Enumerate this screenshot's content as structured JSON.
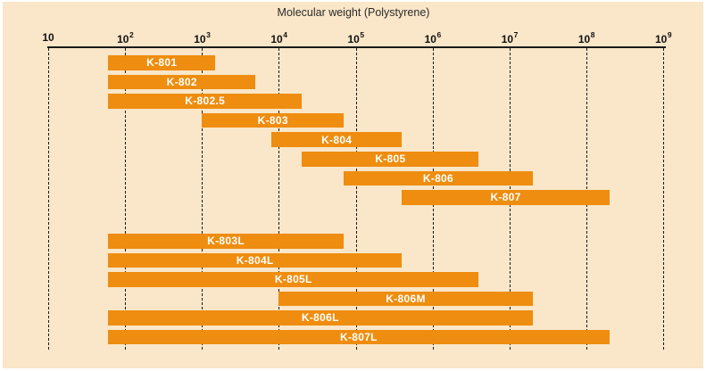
{
  "chart_data": {
    "type": "bar",
    "subtype": "horizontal-range",
    "title": "Molecular weight (Polystyrene)",
    "x_scale": "log10",
    "xlim": [
      10,
      1000000000
    ],
    "grid": "dashed-vertical",
    "legend": "none",
    "x_ticks": [
      {
        "base": "10",
        "exp": "",
        "value": 10
      },
      {
        "base": "10",
        "exp": "2",
        "value": 100
      },
      {
        "base": "10",
        "exp": "3",
        "value": 1000
      },
      {
        "base": "10",
        "exp": "4",
        "value": 10000
      },
      {
        "base": "10",
        "exp": "5",
        "value": 100000
      },
      {
        "base": "10",
        "exp": "6",
        "value": 1000000
      },
      {
        "base": "10",
        "exp": "7",
        "value": 10000000
      },
      {
        "base": "10",
        "exp": "8",
        "value": 100000000
      },
      {
        "base": "10",
        "exp": "9",
        "value": 1000000000
      }
    ],
    "bars": [
      {
        "label": "K-801",
        "min": 60,
        "max": 1500,
        "group": "standard"
      },
      {
        "label": "K-802",
        "min": 60,
        "max": 5000,
        "group": "standard"
      },
      {
        "label": "K-802.5",
        "min": 60,
        "max": 20000,
        "group": "standard"
      },
      {
        "label": "K-803",
        "min": 1000,
        "max": 70000,
        "group": "standard"
      },
      {
        "label": "K-804",
        "min": 8000,
        "max": 400000,
        "group": "standard"
      },
      {
        "label": "K-805",
        "min": 20000,
        "max": 4000000,
        "group": "standard"
      },
      {
        "label": "K-806",
        "min": 70000,
        "max": 20000000,
        "group": "standard"
      },
      {
        "label": "K-807",
        "min": 400000,
        "max": 200000000,
        "group": "standard"
      },
      {
        "label": "K-803L",
        "min": 60,
        "max": 70000,
        "group": "linear"
      },
      {
        "label": "K-804L",
        "min": 60,
        "max": 400000,
        "group": "linear"
      },
      {
        "label": "K-805L",
        "min": 60,
        "max": 4000000,
        "group": "linear"
      },
      {
        "label": "K-806M",
        "min": 10000,
        "max": 20000000,
        "group": "linear"
      },
      {
        "label": "K-806L",
        "min": 60,
        "max": 20000000,
        "group": "linear"
      },
      {
        "label": "K-807L",
        "min": 60,
        "max": 200000000,
        "group": "linear"
      }
    ]
  },
  "colors": {
    "background": "#FAE6C8",
    "bar": "#EE8D0F",
    "bar_label": "#FFFFFF",
    "axis_line": "#1A1A1A",
    "grid_line": "#1A1A1A",
    "tick_text": "#111111",
    "title_text": "#2B2B2B"
  }
}
